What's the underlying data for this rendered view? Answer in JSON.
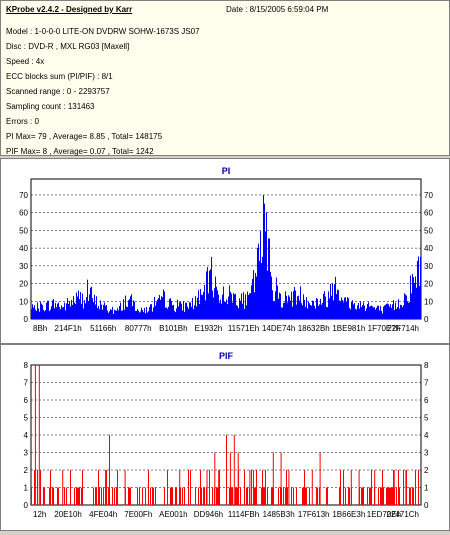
{
  "header": {
    "title": "KProbe v2.4.2 - Designed by Karr",
    "date": "Date : 8/15/2005 6:59:04 PM"
  },
  "info_lines": [
    "Model : 1-0-0-0 LITE-ON DVDRW SOHW-1673S JS07",
    "Disc : DVD-R , MXL RG03 [Maxell]",
    "Speed : 4x",
    "ECC blocks sum (PI/PIF) : 8/1",
    "Scanned range : 0 - 2293757",
    "Sampling count : 131463",
    "Errors : 0",
    "PI Max= 79 , Average= 8.85 , Total= 148175",
    "PIF Max= 8 , Average= 0.07 , Total= 1242"
  ],
  "colors": {
    "pi_fill": "#0000ff",
    "pif_fill": "#ff0000",
    "title_color": "#0000aa",
    "grid": "#000000"
  },
  "chart_data": [
    {
      "type": "area",
      "title": "PI",
      "ylim": [
        0,
        79
      ],
      "yticks": [
        0,
        10,
        20,
        30,
        40,
        50,
        60,
        70
      ],
      "xtick_labels": [
        "8Bh",
        "214F1h",
        "51166h",
        "80777h",
        "B101Bh",
        "E1932h",
        "11571Eh",
        "14DE74h",
        "18632Bh",
        "1BE981h",
        "1F70E7h",
        "22F714h"
      ],
      "grid": true,
      "profile_x": [
        0,
        2,
        4,
        6,
        8,
        10,
        12,
        14,
        15,
        16,
        18,
        20,
        22,
        24,
        26,
        28,
        30,
        32,
        33,
        34,
        36,
        38,
        40,
        42,
        44,
        46,
        48,
        50,
        52,
        54,
        56,
        58,
        59,
        60,
        62,
        64,
        66,
        68,
        70,
        72,
        74,
        76,
        78,
        80,
        82,
        84,
        86,
        88,
        90,
        92,
        94,
        96,
        98,
        100
      ],
      "profile_y": [
        6,
        8,
        9,
        10,
        8,
        11,
        14,
        13,
        17,
        12,
        9,
        6,
        5,
        12,
        11,
        5,
        7,
        8,
        12,
        14,
        9,
        8,
        9,
        11,
        15,
        30,
        16,
        16,
        15,
        12,
        13,
        35,
        45,
        75,
        18,
        14,
        13,
        16,
        15,
        10,
        12,
        14,
        27,
        12,
        10,
        9,
        10,
        7,
        6,
        8,
        10,
        15,
        25,
        35
      ]
    },
    {
      "type": "bar",
      "title": "PIF",
      "ylim": [
        0,
        8
      ],
      "yticks": [
        0,
        1,
        2,
        3,
        4,
        5,
        6,
        7,
        8
      ],
      "xtick_labels": [
        "12h",
        "20E10h",
        "4FE04h",
        "7E00Fh",
        "AE001h",
        "DD946h",
        "1114FBh",
        "1485B3h",
        "17F613h",
        "1B66E3h",
        "1ED70Eh",
        "22471Ch"
      ],
      "grid": true,
      "peaks": [
        [
          1,
          8
        ],
        [
          2,
          8
        ],
        [
          8,
          2
        ],
        [
          19,
          2
        ],
        [
          20,
          4
        ],
        [
          24,
          2
        ],
        [
          30,
          2
        ],
        [
          38,
          2
        ],
        [
          45,
          2
        ],
        [
          47,
          3
        ],
        [
          48,
          2
        ],
        [
          50,
          4
        ],
        [
          51,
          3
        ],
        [
          52,
          4
        ],
        [
          53,
          3
        ],
        [
          56,
          2
        ],
        [
          60,
          2
        ],
        [
          62,
          3
        ],
        [
          64,
          3
        ],
        [
          66,
          2
        ],
        [
          70,
          2
        ],
        [
          72,
          2
        ],
        [
          74,
          3
        ],
        [
          80,
          2
        ],
        [
          82,
          2
        ],
        [
          84,
          2
        ],
        [
          88,
          2
        ],
        [
          90,
          2
        ],
        [
          93,
          2
        ],
        [
          96,
          2
        ]
      ]
    }
  ]
}
